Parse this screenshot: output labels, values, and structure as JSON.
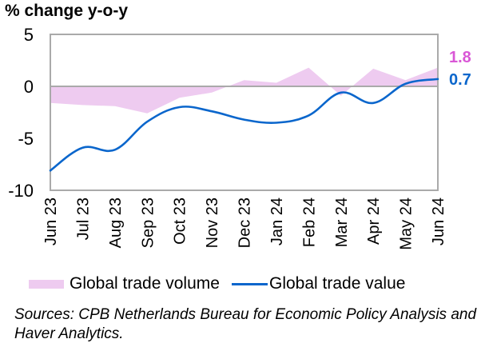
{
  "chart_data": {
    "type": "area",
    "title": "",
    "ylabel": "% change y-o-y",
    "xlabel": "",
    "ylim": [
      -10,
      5
    ],
    "yticks": [
      5,
      0,
      -5,
      -10
    ],
    "categories": [
      "Jun 23",
      "Jul 23",
      "Aug 23",
      "Sep 23",
      "Oct 23",
      "Nov 23",
      "Dec 23",
      "Jan 24",
      "Feb 24",
      "Mar 24",
      "Apr 24",
      "May 24",
      "Jun 24"
    ],
    "series": [
      {
        "name": "Global trade volume",
        "kind": "area",
        "color": "#EECBF0",
        "values": [
          -1.6,
          -1.8,
          -1.9,
          -2.6,
          -1.1,
          -0.6,
          0.6,
          0.35,
          1.8,
          -0.9,
          1.7,
          0.6,
          1.8
        ],
        "end_label": "1.8",
        "end_label_color": "#D957D6"
      },
      {
        "name": "Global trade value",
        "kind": "line",
        "color": "#0A66CC",
        "values": [
          -8.1,
          -5.9,
          -6.1,
          -3.4,
          -2.0,
          -2.4,
          -3.2,
          -3.5,
          -2.8,
          -0.6,
          -1.6,
          0.25,
          0.7
        ],
        "end_label": "0.7",
        "end_label_color": "#0A66CC"
      }
    ],
    "grid": false,
    "zero_line": true,
    "legend_position": "bottom"
  },
  "legend": {
    "volume_label": "Global trade volume",
    "value_label": "Global trade value"
  },
  "source_note": "Sources: CPB Netherlands Bureau for Economic Policy Analysis and Haver Analytics."
}
